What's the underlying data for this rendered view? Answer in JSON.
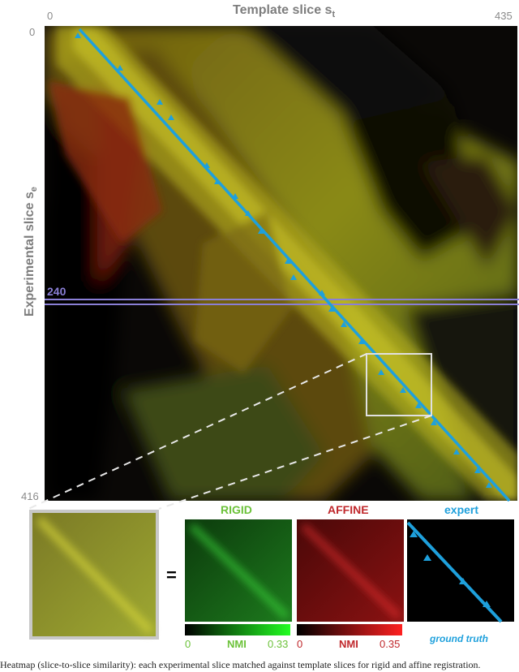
{
  "axes": {
    "top_title": "Template slice s",
    "top_title_sub": "t",
    "left_title": "Experimental slice s",
    "left_title_sub": "e",
    "x_min": "0",
    "x_max": "435",
    "y_min": "0",
    "y_max": "416"
  },
  "marker": {
    "slice": "240"
  },
  "panels": {
    "equals": "=",
    "rigid": {
      "title": "RIGID",
      "nmi_min": "0",
      "nmi_label": "NMI",
      "nmi_max": "0.33"
    },
    "affine": {
      "title": "AFFINE",
      "nmi_min": "0",
      "nmi_label": "NMI",
      "nmi_max": "0.35"
    },
    "expert": {
      "title": "expert",
      "caption": "ground truth"
    }
  },
  "caption": "Heatmap (slice-to-slice similarity): each experimental slice matched against template slices for rigid and affine registration.",
  "colors": {
    "line": "#1ea0dc",
    "marker_line": "#8a7fd6",
    "rigid": "#6cc23a",
    "affine": "#c0282c",
    "expert": "#1ea0dc",
    "axis_text": "#8a8a8a"
  }
}
